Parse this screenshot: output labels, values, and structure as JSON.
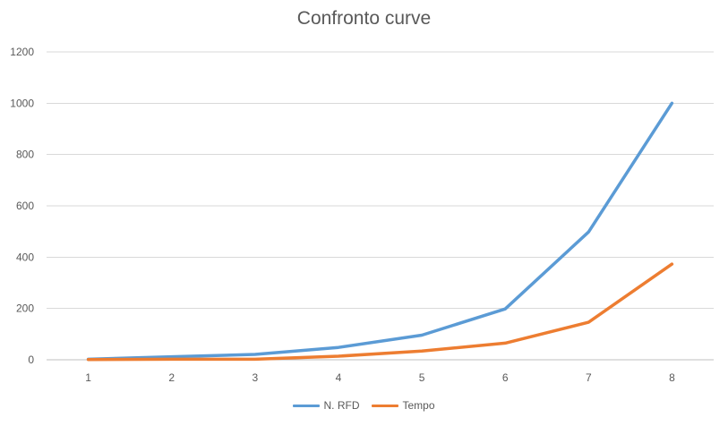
{
  "chart_data": {
    "type": "line",
    "title": "Confronto curve",
    "xlabel": "",
    "ylabel": "",
    "x": [
      1,
      2,
      3,
      4,
      5,
      6,
      7,
      8
    ],
    "ylim": [
      0,
      1200
    ],
    "yticks": [
      0,
      200,
      400,
      600,
      800,
      1000,
      1200
    ],
    "grid": true,
    "legend_position": "bottom",
    "series": [
      {
        "name": "N. RFD",
        "color": "#5b9bd5",
        "values": [
          2,
          12,
          21,
          48,
          96,
          198,
          498,
          1000
        ]
      },
      {
        "name": "Tempo",
        "color": "#ed7d31",
        "values": [
          1,
          2,
          2,
          14,
          34,
          65,
          146,
          373
        ]
      }
    ]
  }
}
